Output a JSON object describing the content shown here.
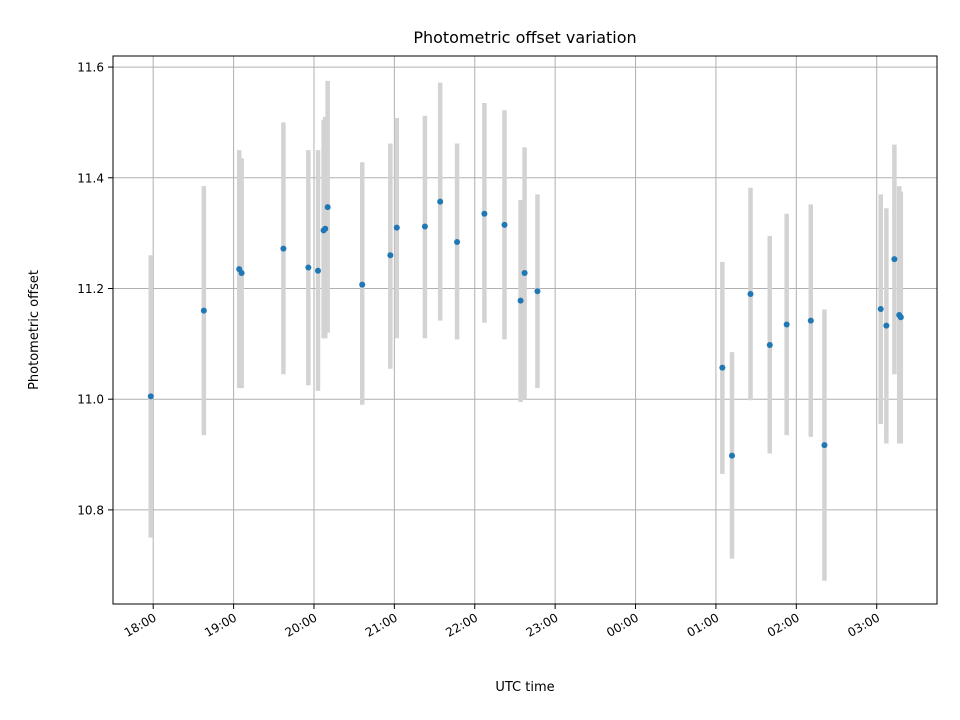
{
  "chart_data": {
    "type": "scatter",
    "title": "Photometric offset variation",
    "xlabel": "UTC time",
    "ylabel": "Photometric offset",
    "x_ticks": [
      "18:00",
      "19:00",
      "20:00",
      "21:00",
      "22:00",
      "23:00",
      "00:00",
      "01:00",
      "02:00",
      "03:00"
    ],
    "y_ticks": [
      "10.8",
      "11.0",
      "11.2",
      "11.4",
      "11.6"
    ],
    "xlim_hours": [
      17.5,
      27.75
    ],
    "ylim": [
      10.63,
      11.62
    ],
    "grid": true,
    "colors": {
      "point": "#1f77b4",
      "errorbar": "#d3d3d3",
      "grid": "#b0b0b0"
    },
    "series": [
      {
        "points": [
          {
            "t": 17.97,
            "y": 11.005,
            "lo": 10.75,
            "hi": 11.26
          },
          {
            "t": 18.63,
            "y": 11.16,
            "lo": 10.935,
            "hi": 11.385
          },
          {
            "t": 19.07,
            "y": 11.235,
            "lo": 11.02,
            "hi": 11.45
          },
          {
            "t": 19.1,
            "y": 11.228,
            "lo": 11.02,
            "hi": 11.435
          },
          {
            "t": 19.62,
            "y": 11.272,
            "lo": 11.045,
            "hi": 11.5
          },
          {
            "t": 19.93,
            "y": 11.238,
            "lo": 11.025,
            "hi": 11.45
          },
          {
            "t": 20.05,
            "y": 11.232,
            "lo": 11.015,
            "hi": 11.45
          },
          {
            "t": 20.12,
            "y": 11.305,
            "lo": 11.11,
            "hi": 11.505
          },
          {
            "t": 20.14,
            "y": 11.308,
            "lo": 11.11,
            "hi": 11.51
          },
          {
            "t": 20.17,
            "y": 11.347,
            "lo": 11.12,
            "hi": 11.575
          },
          {
            "t": 20.6,
            "y": 11.207,
            "lo": 10.99,
            "hi": 11.428
          },
          {
            "t": 20.95,
            "y": 11.26,
            "lo": 11.055,
            "hi": 11.462
          },
          {
            "t": 21.03,
            "y": 11.31,
            "lo": 11.11,
            "hi": 11.508
          },
          {
            "t": 21.38,
            "y": 11.312,
            "lo": 11.11,
            "hi": 11.512
          },
          {
            "t": 21.57,
            "y": 11.357,
            "lo": 11.142,
            "hi": 11.572
          },
          {
            "t": 21.78,
            "y": 11.284,
            "lo": 11.108,
            "hi": 11.462
          },
          {
            "t": 22.12,
            "y": 11.335,
            "lo": 11.138,
            "hi": 11.535
          },
          {
            "t": 22.37,
            "y": 11.315,
            "lo": 11.108,
            "hi": 11.522
          },
          {
            "t": 22.57,
            "y": 11.178,
            "lo": 10.995,
            "hi": 11.36
          },
          {
            "t": 22.62,
            "y": 11.228,
            "lo": 11.0,
            "hi": 11.455
          },
          {
            "t": 22.78,
            "y": 11.195,
            "lo": 11.02,
            "hi": 11.37
          },
          {
            "t": 25.08,
            "y": 11.057,
            "lo": 10.865,
            "hi": 11.248
          },
          {
            "t": 25.2,
            "y": 10.898,
            "lo": 10.712,
            "hi": 11.085
          },
          {
            "t": 25.43,
            "y": 11.19,
            "lo": 10.998,
            "hi": 11.382
          },
          {
            "t": 25.67,
            "y": 11.098,
            "lo": 10.902,
            "hi": 11.295
          },
          {
            "t": 25.88,
            "y": 11.135,
            "lo": 10.935,
            "hi": 11.335
          },
          {
            "t": 26.18,
            "y": 11.142,
            "lo": 10.932,
            "hi": 11.352
          },
          {
            "t": 26.35,
            "y": 10.917,
            "lo": 10.672,
            "hi": 11.162
          },
          {
            "t": 27.05,
            "y": 11.163,
            "lo": 10.955,
            "hi": 11.37
          },
          {
            "t": 27.12,
            "y": 11.133,
            "lo": 10.92,
            "hi": 11.345
          },
          {
            "t": 27.22,
            "y": 11.253,
            "lo": 11.045,
            "hi": 11.46
          },
          {
            "t": 27.28,
            "y": 11.152,
            "lo": 10.92,
            "hi": 11.385
          },
          {
            "t": 27.3,
            "y": 11.148,
            "lo": 10.92,
            "hi": 11.375
          }
        ]
      }
    ]
  }
}
